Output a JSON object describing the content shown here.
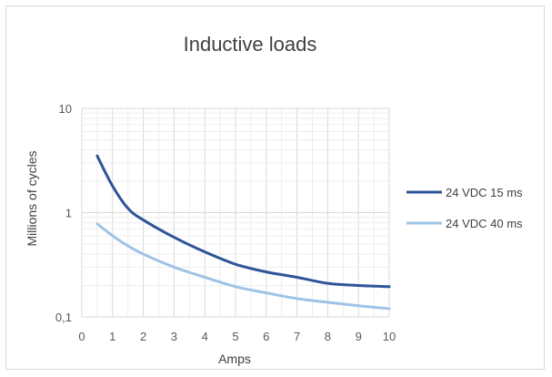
{
  "chart_data": {
    "type": "line",
    "title": "Inductive loads",
    "xlabel": "Amps",
    "ylabel": "Millions of cycles",
    "xlim": [
      0,
      10
    ],
    "ylim": [
      0.1,
      10
    ],
    "yscale": "log",
    "x_ticks": [
      "0",
      "1",
      "2",
      "3",
      "4",
      "5",
      "6",
      "7",
      "8",
      "9",
      "10"
    ],
    "y_ticks": [
      "0,1",
      "1",
      "10"
    ],
    "grid": true,
    "legend_position": "right",
    "series": [
      {
        "name": "24 VDC 15 ms",
        "color": "#2e5597",
        "x": [
          0.5,
          1,
          1.5,
          2,
          3,
          4,
          5,
          6,
          7,
          8,
          9,
          10
        ],
        "y": [
          3.5,
          1.8,
          1.1,
          0.85,
          0.58,
          0.42,
          0.32,
          0.27,
          0.24,
          0.21,
          0.2,
          0.195
        ]
      },
      {
        "name": "24 VDC 40 ms",
        "color": "#9dc3e6",
        "x": [
          0.5,
          1,
          1.5,
          2,
          3,
          4,
          5,
          6,
          7,
          8,
          9,
          10
        ],
        "y": [
          0.78,
          0.6,
          0.48,
          0.4,
          0.3,
          0.24,
          0.195,
          0.17,
          0.15,
          0.138,
          0.128,
          0.12
        ]
      }
    ]
  }
}
